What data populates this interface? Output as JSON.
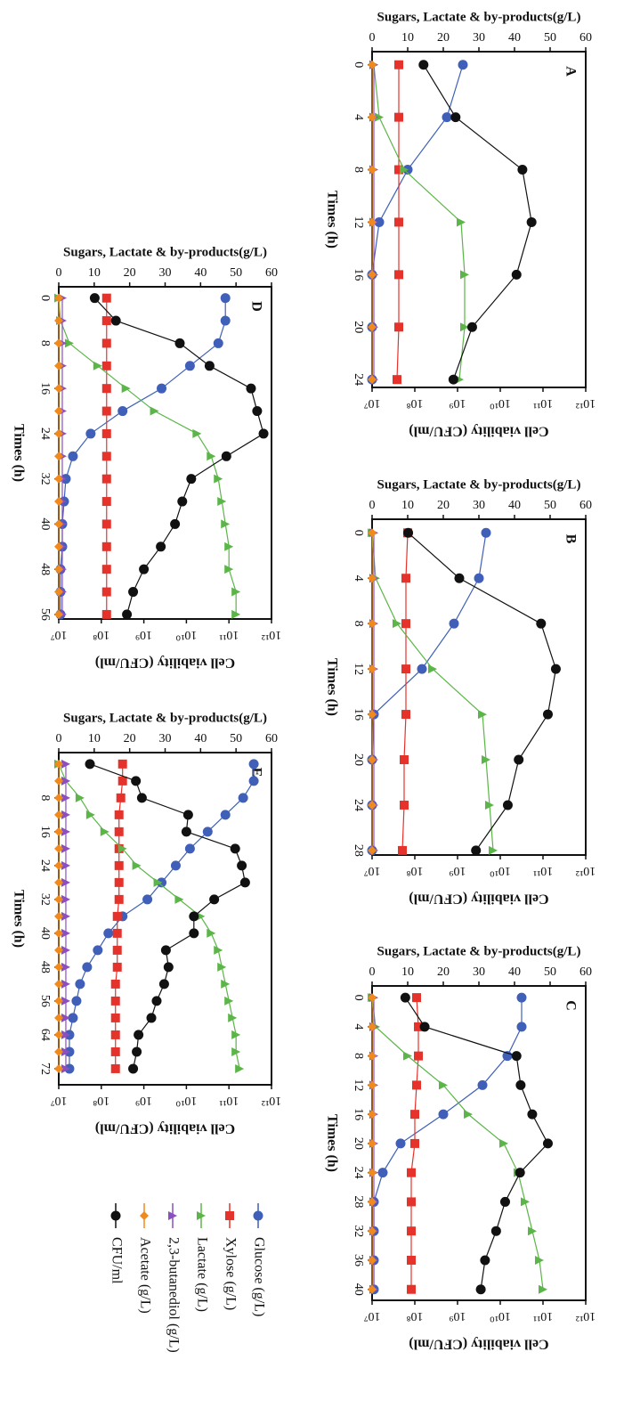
{
  "legend": [
    {
      "name": "Glucose (g/L)",
      "color": "#3f5fb8",
      "marker": "circle"
    },
    {
      "name": "Xylose (g/L)",
      "color": "#e5322b",
      "marker": "square"
    },
    {
      "name": "Lactate (g/L)",
      "color": "#5cb548",
      "marker": "triangle"
    },
    {
      "name": "2,3-butanediol (g/L)",
      "color": "#8c4fc0",
      "marker": "triangle"
    },
    {
      "name": "Acetate (g/L)",
      "color": "#f08a1d",
      "marker": "diamond"
    },
    {
      "name": "CFU/ml",
      "color": "#111111",
      "marker": "circle"
    }
  ],
  "chart_data": [
    {
      "type": "line",
      "label": "A",
      "xlabel": "Times (h)",
      "ylabel": "Sugars, Lactate & by-products(g/L)",
      "y2label": "Cell viability (CFU/ml)",
      "y2scale": "log",
      "x": [
        0,
        4,
        8,
        12,
        16,
        20,
        24
      ],
      "xlim": [
        -1,
        24.6
      ],
      "xticks": [
        0,
        4,
        8,
        12,
        16,
        20,
        24
      ],
      "ylim": [
        0,
        60
      ],
      "yticks": [
        0,
        10,
        20,
        30,
        40,
        50,
        60
      ],
      "y2lim": [
        10000000.0,
        1000000000000.0
      ],
      "y2ticks": [
        {
          "value": 10000000.0,
          "label": "10⁷"
        },
        {
          "value": 100000000.0,
          "label": "10⁸"
        },
        {
          "value": 1000000000.0,
          "label": "10⁹"
        },
        {
          "value": 10000000000.0,
          "label": "10¹⁰"
        },
        {
          "value": 100000000000.0,
          "label": "10¹¹"
        },
        {
          "value": 1000000000000.0,
          "label": "10¹²"
        }
      ],
      "series": [
        {
          "values": [
            25.5,
            21,
            10,
            2,
            0,
            0,
            0
          ]
        },
        {
          "values": [
            7.5,
            7.5,
            7.5,
            7.5,
            7.5,
            7.5,
            7
          ]
        },
        {
          "values": [
            0.5,
            2,
            9,
            25,
            26,
            26,
            24.5
          ]
        },
        {
          "values": [
            0.5,
            0.5,
            0.5,
            0.5,
            0.5,
            0.5,
            0.5
          ]
        },
        {
          "values": [
            0,
            0,
            0,
            0,
            0,
            0,
            0
          ]
        },
        {
          "values": [
            160000000.0,
            900000000.0,
            33000000000.0,
            54000000000.0,
            24000000000.0,
            2200000000.0,
            800000000.0
          ],
          "axis": "y2"
        }
      ]
    },
    {
      "type": "line",
      "label": "B",
      "xlabel": "Times (h)",
      "ylabel": "Sugars, Lactate & by-products(g/L)",
      "y2label": "Cell viability (CFU/ml)",
      "y2scale": "log",
      "x": [
        0,
        4,
        8,
        12,
        16,
        20,
        24,
        28
      ],
      "xlim": [
        -1.2,
        28.4
      ],
      "xticks": [
        0,
        4,
        8,
        12,
        16,
        20,
        24,
        28
      ],
      "ylim": [
        0,
        60
      ],
      "yticks": [
        0,
        10,
        20,
        30,
        40,
        50,
        60
      ],
      "y2lim": [
        10000000.0,
        1000000000000.0
      ],
      "y2ticks": [
        {
          "value": 10000000.0,
          "label": "10⁷"
        },
        {
          "value": 100000000.0,
          "label": "10⁸"
        },
        {
          "value": 1000000000.0,
          "label": "10⁹"
        },
        {
          "value": 10000000000.0,
          "label": "10¹⁰"
        },
        {
          "value": 100000000000.0,
          "label": "10¹¹"
        },
        {
          "value": 1000000000000.0,
          "label": "10¹²"
        }
      ],
      "series": [
        {
          "values": [
            32,
            30,
            23,
            14,
            0.5,
            0,
            0,
            0
          ]
        },
        {
          "values": [
            10,
            9.5,
            9.5,
            9.5,
            9.5,
            9,
            9,
            8.5
          ]
        },
        {
          "values": [
            0,
            1,
            7,
            17,
            31,
            32,
            33,
            34
          ]
        },
        {
          "values": [
            0.5,
            0.5,
            0.5,
            0.5,
            0.5,
            0.5,
            0.5,
            0.5
          ]
        },
        {
          "values": [
            0,
            0,
            0,
            0,
            0,
            0,
            0,
            0
          ]
        },
        {
          "values": [
            70000000.0,
            1100000000.0,
            90000000000.0,
            200000000000.0,
            130000000000.0,
            27000000000.0,
            15000000000.0,
            2700000000.0
          ],
          "axis": "y2"
        }
      ]
    },
    {
      "type": "line",
      "label": "C",
      "xlabel": "Times (h)",
      "ylabel": "Sugars, Lactate & by-products(g/L)",
      "y2label": "Cell viability (CFU/ml)",
      "y2scale": "log",
      "x": [
        0,
        4,
        8,
        12,
        16,
        20,
        24,
        28,
        32,
        36,
        40
      ],
      "xlim": [
        -1.6,
        41.5
      ],
      "xticks": [
        0,
        4,
        8,
        12,
        16,
        20,
        24,
        28,
        32,
        36,
        40
      ],
      "ylim": [
        0,
        60
      ],
      "yticks": [
        0,
        10,
        20,
        30,
        40,
        50,
        60
      ],
      "y2lim": [
        10000000.0,
        1000000000000.0
      ],
      "y2ticks": [
        {
          "value": 10000000.0,
          "label": "10⁷"
        },
        {
          "value": 100000000.0,
          "label": "10⁸"
        },
        {
          "value": 1000000000.0,
          "label": "10⁹"
        },
        {
          "value": 10000000000.0,
          "label": "10¹⁰"
        },
        {
          "value": 100000000000.0,
          "label": "10¹¹"
        },
        {
          "value": 1000000000000.0,
          "label": "10¹²"
        }
      ],
      "series": [
        {
          "values": [
            42,
            42,
            38,
            31,
            20,
            8,
            3,
            0.5,
            0.5,
            0.5,
            0.5
          ]
        },
        {
          "values": [
            12.5,
            13,
            13,
            12.5,
            12,
            12,
            11,
            11,
            11,
            11,
            11
          ]
        },
        {
          "values": [
            0,
            1,
            10,
            20,
            27,
            37,
            41,
            43,
            45,
            47,
            48
          ]
        },
        {
          "values": [
            0.5,
            0.5,
            0.5,
            0.5,
            0.5,
            0.5,
            0.5,
            0.5,
            0.5,
            0.5,
            0.5
          ]
        },
        {
          "values": [
            0,
            0,
            0,
            0,
            0,
            0,
            0,
            0,
            0,
            0,
            0
          ]
        },
        {
          "values": [
            60000000.0,
            170000000.0,
            24000000000.0,
            30000000000.0,
            56000000000.0,
            130000000000.0,
            29000000000.0,
            13000000000.0,
            8000000000.0,
            4400000000.0,
            3500000000.0
          ],
          "axis": "y2"
        }
      ]
    },
    {
      "type": "line",
      "label": "D",
      "xlabel": "Times (h)",
      "ylabel": "Sugars, Lactate & by-products(g/L)",
      "y2label": "Cell viability (CFU/ml)",
      "y2scale": "log",
      "x": [
        0,
        4,
        8,
        12,
        16,
        20,
        24,
        28,
        32,
        36,
        40,
        44,
        48,
        52,
        56
      ],
      "xlim": [
        -2,
        56.8
      ],
      "xticks": [
        0,
        8,
        16,
        24,
        32,
        40,
        48,
        56
      ],
      "ylim": [
        0,
        60
      ],
      "yticks": [
        0,
        10,
        20,
        30,
        40,
        50,
        60
      ],
      "y2lim": [
        10000000.0,
        1000000000000.0
      ],
      "y2ticks": [
        {
          "value": 10000000.0,
          "label": "10⁷"
        },
        {
          "value": 100000000.0,
          "label": "10⁸"
        },
        {
          "value": 1000000000.0,
          "label": "10⁹"
        },
        {
          "value": 10000000000.0,
          "label": "10¹⁰"
        },
        {
          "value": 100000000000.0,
          "label": "10¹¹"
        },
        {
          "value": 1000000000000.0,
          "label": "10¹²"
        }
      ],
      "series": [
        {
          "values": [
            47,
            47,
            45,
            37,
            29,
            18,
            9,
            4,
            2,
            1.5,
            1,
            1,
            0.5,
            0.5,
            0.5
          ]
        },
        {
          "values": [
            13.5,
            13.5,
            13.5,
            13.5,
            13.5,
            13.5,
            13.5,
            13.5,
            13.5,
            13.5,
            13.5,
            13.5,
            13.5,
            13.5,
            13.5
          ]
        },
        {
          "values": [
            0,
            0.5,
            3,
            11,
            19,
            27,
            39,
            43,
            45,
            46,
            47,
            48,
            48,
            50,
            50
          ]
        },
        {
          "values": [
            1,
            1,
            1,
            1,
            1,
            1,
            1,
            1,
            1,
            1,
            1,
            1,
            1,
            1,
            1
          ]
        },
        {
          "values": [
            0,
            0,
            0,
            0,
            0,
            0,
            0,
            0,
            0,
            0,
            0,
            0,
            0,
            0,
            0
          ]
        },
        {
          "values": [
            70000000.0,
            220000000.0,
            7000000000.0,
            35000000000.0,
            330000000000.0,
            460000000000.0,
            650000000000.0,
            87000000000.0,
            13000000000.0,
            8000000000.0,
            5400000000.0,
            2500000000.0,
            1000000000.0,
            560000000.0,
            400000000.0
          ],
          "axis": "y2"
        }
      ]
    },
    {
      "type": "line",
      "label": "E",
      "xlabel": "Times (h)",
      "ylabel": "Sugars, Lactate & by-products(g/L)",
      "y2label": "Cell viability (CFU/ml)",
      "y2scale": "log",
      "x": [
        0,
        4,
        8,
        12,
        16,
        20,
        24,
        28,
        32,
        36,
        40,
        44,
        48,
        52,
        56,
        60,
        64,
        68,
        72
      ],
      "xlim": [
        -2.7,
        75.8
      ],
      "xticks": [
        8,
        16,
        24,
        32,
        40,
        48,
        56,
        64,
        72
      ],
      "ylim": [
        0,
        60
      ],
      "yticks": [
        0,
        10,
        20,
        30,
        40,
        50,
        60
      ],
      "y2lim": [
        10000000.0,
        1000000000000.0
      ],
      "y2ticks": [
        {
          "value": 10000000.0,
          "label": "10⁷"
        },
        {
          "value": 100000000.0,
          "label": "10⁸"
        },
        {
          "value": 1000000000.0,
          "label": "10⁹"
        },
        {
          "value": 10000000000.0,
          "label": "10¹⁰"
        },
        {
          "value": 100000000000.0,
          "label": "10¹¹"
        },
        {
          "value": 1000000000000.0,
          "label": "10¹²"
        }
      ],
      "series": [
        {
          "values": [
            55,
            55,
            52,
            47,
            42,
            37,
            33,
            29,
            25,
            18,
            14,
            11,
            8,
            6,
            5,
            4,
            3,
            3,
            3
          ]
        },
        {
          "values": [
            18,
            18,
            17.5,
            17,
            17,
            17,
            17,
            17,
            17,
            16.5,
            16.5,
            16.5,
            16.5,
            16,
            16,
            16,
            16,
            16,
            16
          ]
        },
        {
          "values": [
            0,
            2,
            6,
            9,
            13,
            18,
            22,
            28,
            34,
            40,
            43,
            45,
            46,
            47,
            48,
            49,
            50,
            50,
            51
          ]
        },
        {
          "values": [
            2,
            2,
            2,
            2,
            2,
            2,
            2,
            2,
            2,
            2,
            2,
            2,
            2,
            2,
            2,
            2,
            2,
            2,
            2
          ]
        },
        {
          "values": [
            0,
            0,
            0,
            0,
            0,
            0,
            0,
            0,
            0,
            0,
            0,
            0,
            0,
            0,
            0,
            0,
            0,
            0,
            0
          ]
        },
        {
          "values": [
            54000000.0,
            650000000.0,
            900000000.0,
            11000000000.0,
            10000000000.0,
            140000000000.0,
            200000000000.0,
            240000000000.0,
            45000000000.0,
            15000000000.0,
            15000000000.0,
            3300000000.0,
            3800000000.0,
            3000000000.0,
            2000000000.0,
            1500000000.0,
            750000000.0,
            680000000.0,
            560000000.0
          ],
          "axis": "y2"
        }
      ]
    }
  ]
}
